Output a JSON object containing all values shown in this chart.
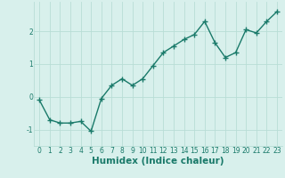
{
  "x": [
    0,
    1,
    2,
    3,
    4,
    5,
    6,
    7,
    8,
    9,
    10,
    11,
    12,
    13,
    14,
    15,
    16,
    17,
    18,
    19,
    20,
    21,
    22,
    23
  ],
  "y": [
    -0.1,
    -0.7,
    -0.8,
    -0.8,
    -0.75,
    -1.05,
    -0.05,
    0.35,
    0.55,
    0.35,
    0.55,
    0.95,
    1.35,
    1.55,
    1.75,
    1.9,
    2.3,
    1.65,
    1.2,
    1.35,
    2.05,
    1.95,
    2.3,
    2.6
  ],
  "line_color": "#1a7a6a",
  "marker": "+",
  "marker_size": 4,
  "marker_lw": 1.0,
  "bg_color": "#d8f0ec",
  "grid_color": "#b8ddd6",
  "xlabel": "Humidex (Indice chaleur)",
  "xlim": [
    -0.5,
    23.5
  ],
  "ylim": [
    -1.5,
    2.9
  ],
  "xticks": [
    0,
    1,
    2,
    3,
    4,
    5,
    6,
    7,
    8,
    9,
    10,
    11,
    12,
    13,
    14,
    15,
    16,
    17,
    18,
    19,
    20,
    21,
    22,
    23
  ],
  "yticks": [
    -1,
    0,
    1,
    2
  ],
  "tick_fontsize": 5.5,
  "label_fontsize": 7.5,
  "line_width": 1.0
}
